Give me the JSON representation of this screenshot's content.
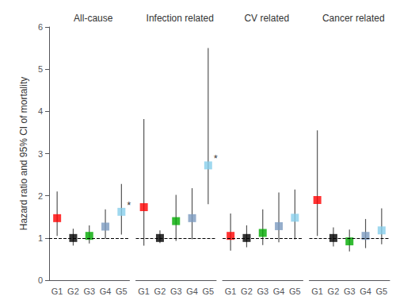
{
  "chart_data": {
    "type": "scatter",
    "marker": "square",
    "ylabel": "Hazard ratio and 95% CI of mortality",
    "categories": [
      "G1",
      "G2",
      "G3",
      "G4",
      "G5"
    ],
    "colors": [
      "#ff0000",
      "#000000",
      "#00aa00",
      "#7a9abf",
      "#87ceeb"
    ],
    "ylim": [
      0,
      6
    ],
    "yticks": [
      0,
      1,
      2,
      3,
      4,
      5,
      6
    ],
    "grid": false,
    "ref_line": 1.0,
    "panels": [
      {
        "title": "All-cause",
        "values": [
          1.47,
          1.0,
          1.05,
          1.27,
          1.62
        ],
        "lo": [
          1.05,
          0.82,
          0.87,
          0.98,
          1.08
        ],
        "hi": [
          2.1,
          1.22,
          1.3,
          1.68,
          2.28
        ],
        "annotations": [
          null,
          null,
          null,
          null,
          "*"
        ]
      },
      {
        "title": "Infection related",
        "values": [
          1.73,
          1.0,
          1.4,
          1.47,
          2.72
        ],
        "lo": [
          0.82,
          0.88,
          0.93,
          0.97,
          1.8
        ],
        "hi": [
          3.82,
          1.18,
          2.02,
          2.18,
          5.5
        ],
        "annotations": [
          null,
          null,
          null,
          null,
          "*"
        ]
      },
      {
        "title": "CV related",
        "values": [
          1.05,
          1.0,
          1.12,
          1.28,
          1.48
        ],
        "lo": [
          0.7,
          0.78,
          0.83,
          0.9,
          0.97
        ],
        "hi": [
          1.58,
          1.3,
          1.68,
          2.08,
          2.15
        ],
        "annotations": [
          null,
          null,
          null,
          null,
          null
        ]
      },
      {
        "title": "Cancer related",
        "values": [
          1.9,
          1.0,
          0.92,
          1.05,
          1.18
        ],
        "lo": [
          1.05,
          0.8,
          0.68,
          0.76,
          0.85
        ],
        "hi": [
          3.55,
          1.25,
          1.2,
          1.45,
          1.7
        ],
        "annotations": [
          null,
          null,
          null,
          null,
          null
        ]
      }
    ]
  }
}
